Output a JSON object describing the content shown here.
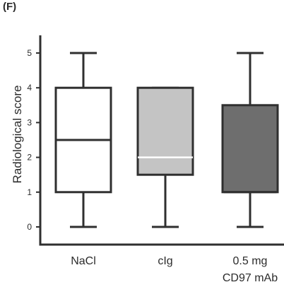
{
  "panel_label": "(F)",
  "chart_data": {
    "type": "box",
    "title": "",
    "xlabel": "",
    "ylabel": "Radiological score",
    "ylim": [
      0,
      5
    ],
    "yticks": [
      0,
      1,
      2,
      3,
      4,
      5
    ],
    "grid": false,
    "categories": [
      "NaCl",
      "cIg",
      "0.5 mg CD97 mAb"
    ],
    "category_labels": [
      [
        "NaCl"
      ],
      [
        "cIg"
      ],
      [
        "0.5 mg",
        "CD97 mAb"
      ]
    ],
    "boxes": [
      {
        "category": "NaCl",
        "min": 0,
        "q1": 1,
        "median": 2.5,
        "q3": 4,
        "max": 5,
        "fill": "#ffffff"
      },
      {
        "category": "cIg",
        "min": 0,
        "q1": 1.5,
        "median": 2,
        "q3": 4,
        "max": 4,
        "fill": "#c4c4c4"
      },
      {
        "category": "0.5 mg CD97 mAb",
        "min": 0,
        "q1": 1,
        "median": 1,
        "q3": 3.5,
        "max": 5,
        "fill": "#6e6e6e"
      }
    ]
  }
}
